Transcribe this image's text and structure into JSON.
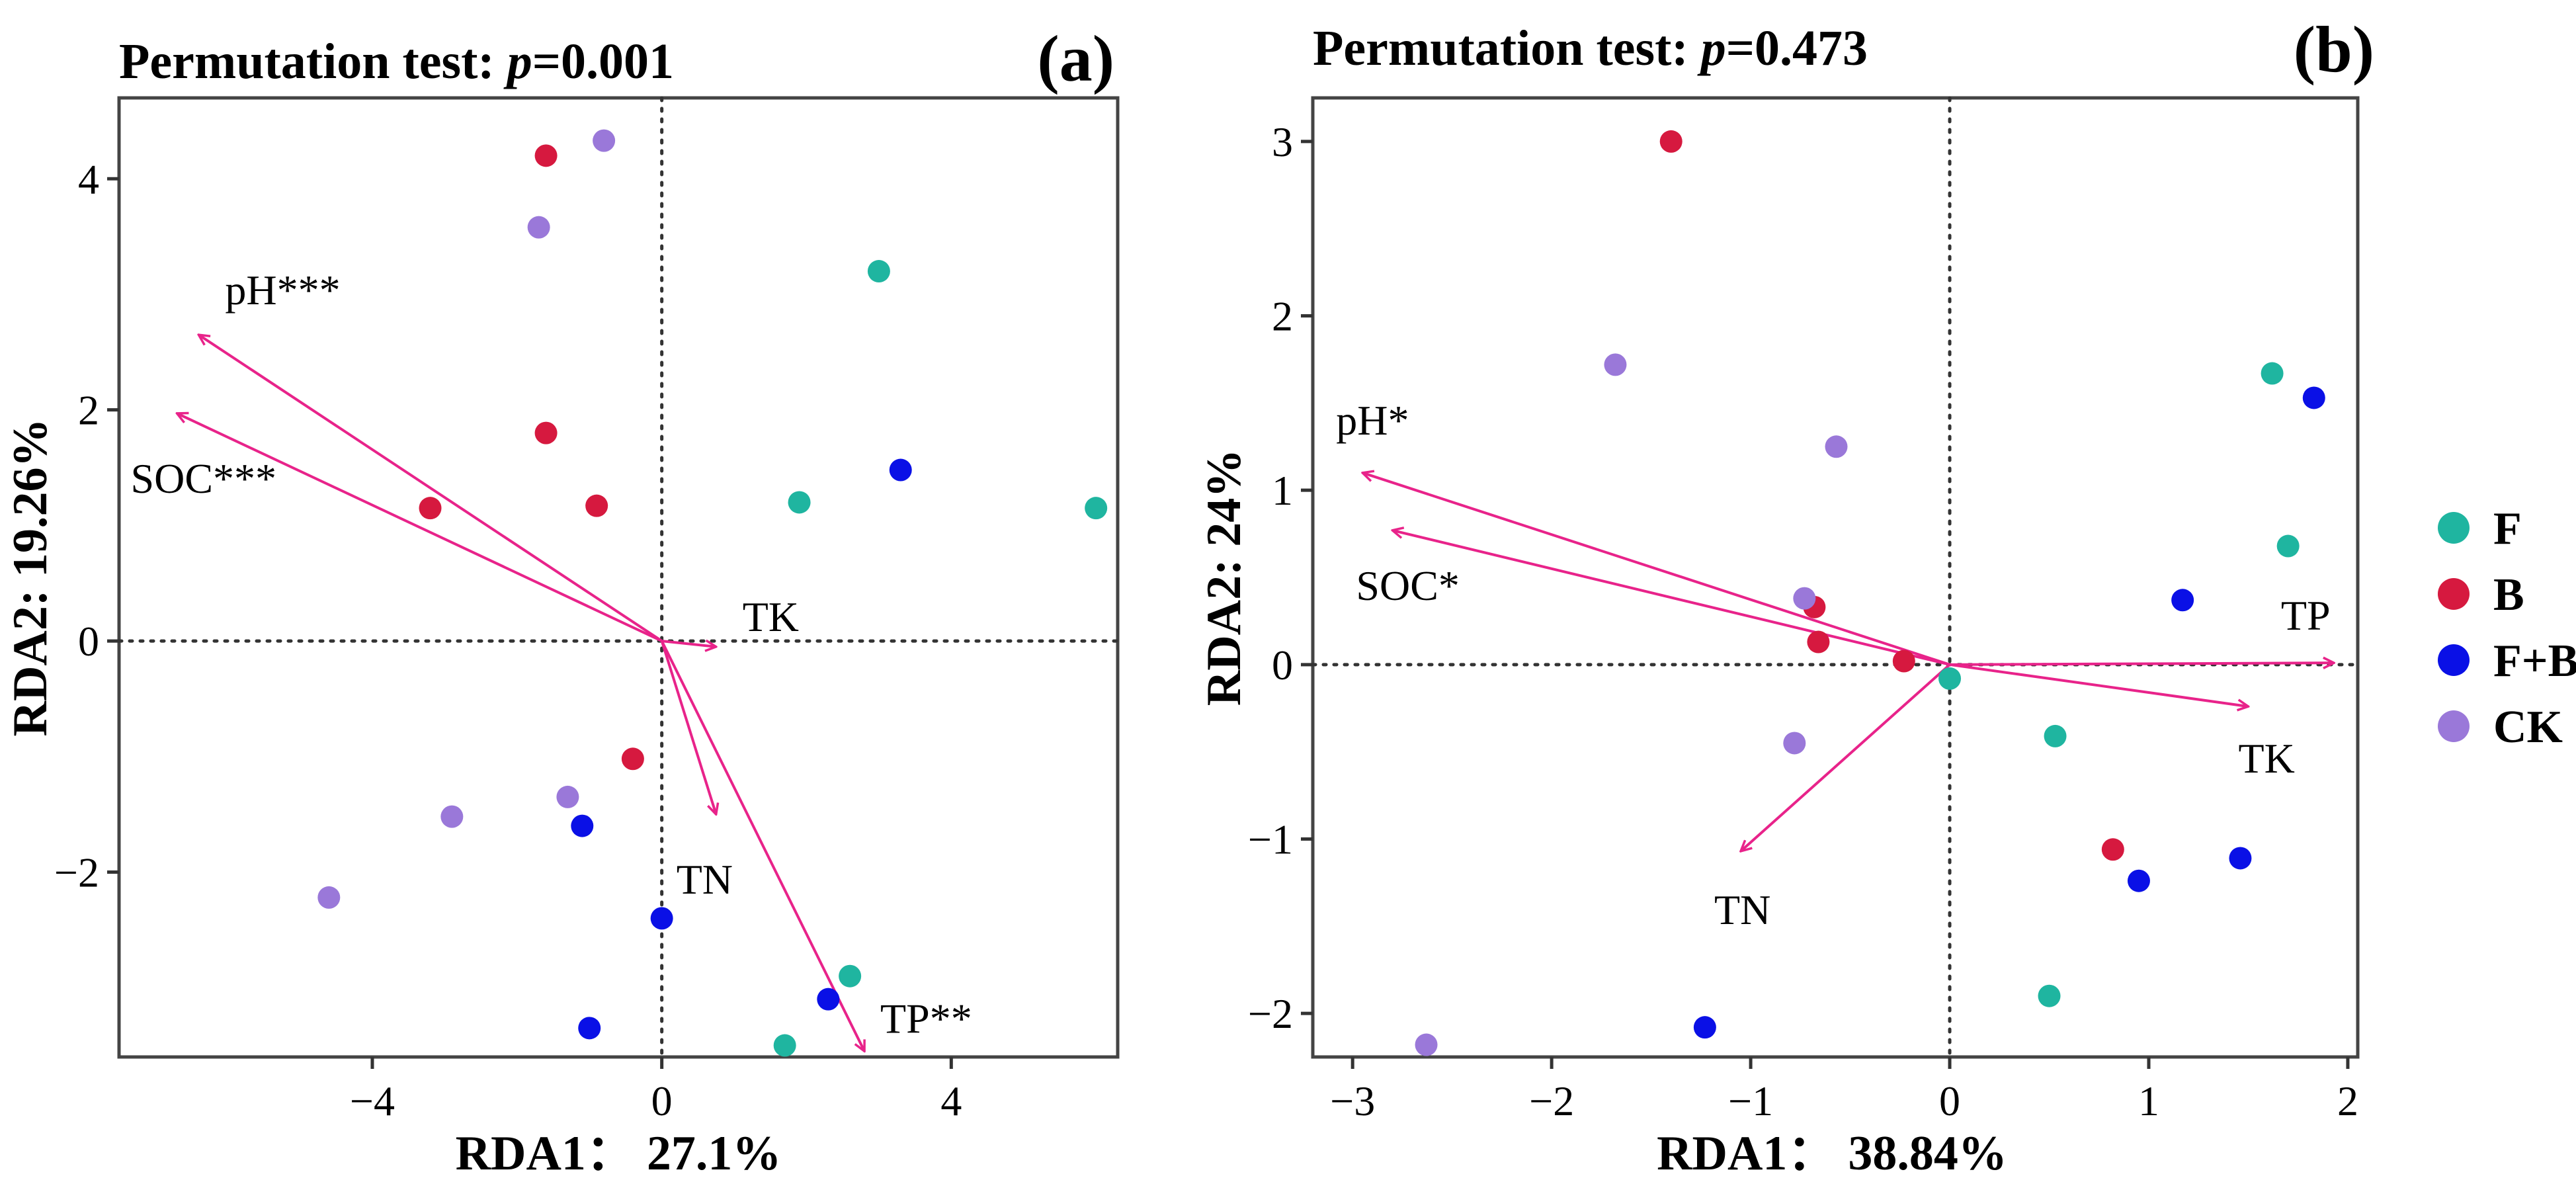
{
  "legend": {
    "items": [
      {
        "label": "F",
        "color": "#1fb5a0"
      },
      {
        "label": "B",
        "color": "#d6193f"
      },
      {
        "label": "F+B",
        "color": "#0a10e6"
      },
      {
        "label": "CK",
        "color": "#9a78d9"
      }
    ]
  },
  "arrow_color": "#e8238a",
  "chart_data": [
    {
      "type": "scatter",
      "panel": "(a)",
      "title_prefix": "Permutation test: ",
      "title_p": "p",
      "title_value": "=0.001",
      "xlabel_prefix": "RDA1",
      "xlabel_value": "27.1%",
      "ylabel": "RDA2: 19.26%",
      "xlim": [
        -7.5,
        6.3
      ],
      "ylim": [
        -3.6,
        4.7
      ],
      "xticks": [
        -4,
        0,
        4
      ],
      "yticks": [
        -2,
        0,
        2,
        4
      ],
      "points": [
        {
          "group": "F",
          "x": 3.0,
          "y": 3.2
        },
        {
          "group": "F",
          "x": 1.9,
          "y": 1.2
        },
        {
          "group": "F",
          "x": 6.0,
          "y": 1.15
        },
        {
          "group": "F",
          "x": 2.6,
          "y": -2.9
        },
        {
          "group": "F",
          "x": 1.7,
          "y": -3.5
        },
        {
          "group": "B",
          "x": -1.6,
          "y": 4.2
        },
        {
          "group": "B",
          "x": -1.6,
          "y": 1.8
        },
        {
          "group": "B",
          "x": -0.9,
          "y": 1.17
        },
        {
          "group": "B",
          "x": -3.2,
          "y": 1.15
        },
        {
          "group": "B",
          "x": -0.4,
          "y": -1.02
        },
        {
          "group": "F+B",
          "x": 3.3,
          "y": 1.48
        },
        {
          "group": "F+B",
          "x": -1.1,
          "y": -1.6
        },
        {
          "group": "F+B",
          "x": 0.0,
          "y": -2.4
        },
        {
          "group": "F+B",
          "x": 2.3,
          "y": -3.1
        },
        {
          "group": "F+B",
          "x": -1.0,
          "y": -3.35
        },
        {
          "group": "CK",
          "x": -0.8,
          "y": 4.33
        },
        {
          "group": "CK",
          "x": -1.7,
          "y": 3.58
        },
        {
          "group": "CK",
          "x": -1.3,
          "y": -1.35
        },
        {
          "group": "CK",
          "x": -2.9,
          "y": -1.52
        },
        {
          "group": "CK",
          "x": -4.6,
          "y": -2.22
        }
      ],
      "vectors": [
        {
          "label": "pH***",
          "x": -6.4,
          "y": 2.65
        },
        {
          "label": "SOC***",
          "x": -6.7,
          "y": 1.97
        },
        {
          "label": "TK",
          "x": 0.75,
          "y": -0.05
        },
        {
          "label": "TN",
          "x": 0.75,
          "y": -1.5
        },
        {
          "label": "TP**",
          "x": 2.8,
          "y": -3.55
        }
      ]
    },
    {
      "type": "scatter",
      "panel": "(b)",
      "title_prefix": "Permutation test: ",
      "title_p": "p",
      "title_value": "=0.473",
      "xlabel_prefix": "RDA1",
      "xlabel_value": "38.84%",
      "ylabel": "RDA2: 24%",
      "xlim": [
        -3.2,
        2.05
      ],
      "ylim": [
        -2.25,
        3.25
      ],
      "xticks": [
        -3,
        -2,
        -1,
        0,
        1,
        2
      ],
      "yticks": [
        -2,
        -1,
        0,
        1,
        2,
        3
      ],
      "points": [
        {
          "group": "F",
          "x": 1.62,
          "y": 1.67
        },
        {
          "group": "F",
          "x": 1.7,
          "y": 0.68
        },
        {
          "group": "F",
          "x": 0.0,
          "y": -0.08
        },
        {
          "group": "F",
          "x": 0.53,
          "y": -0.41
        },
        {
          "group": "F",
          "x": 0.5,
          "y": -1.9
        },
        {
          "group": "B",
          "x": -1.4,
          "y": 3.0
        },
        {
          "group": "B",
          "x": -0.68,
          "y": 0.33
        },
        {
          "group": "B",
          "x": -0.66,
          "y": 0.13
        },
        {
          "group": "B",
          "x": -0.23,
          "y": 0.02
        },
        {
          "group": "B",
          "x": 0.82,
          "y": -1.06
        },
        {
          "group": "F+B",
          "x": 1.83,
          "y": 1.53
        },
        {
          "group": "F+B",
          "x": 1.17,
          "y": 0.37
        },
        {
          "group": "F+B",
          "x": 1.46,
          "y": -1.11
        },
        {
          "group": "F+B",
          "x": 0.95,
          "y": -1.24
        },
        {
          "group": "F+B",
          "x": -1.23,
          "y": -2.08
        },
        {
          "group": "CK",
          "x": -1.68,
          "y": 1.72
        },
        {
          "group": "CK",
          "x": -0.57,
          "y": 1.25
        },
        {
          "group": "CK",
          "x": -0.73,
          "y": 0.38
        },
        {
          "group": "CK",
          "x": -0.78,
          "y": -0.45
        },
        {
          "group": "CK",
          "x": -2.63,
          "y": -2.18
        }
      ],
      "vectors": [
        {
          "label": "pH*",
          "x": -2.95,
          "y": 1.1
        },
        {
          "label": "SOC*",
          "x": -2.8,
          "y": 0.77
        },
        {
          "label": "TP",
          "x": 1.93,
          "y": 0.01
        },
        {
          "label": "TK",
          "x": 1.5,
          "y": -0.24
        },
        {
          "label": "TN",
          "x": -1.05,
          "y": -1.07
        }
      ]
    }
  ]
}
